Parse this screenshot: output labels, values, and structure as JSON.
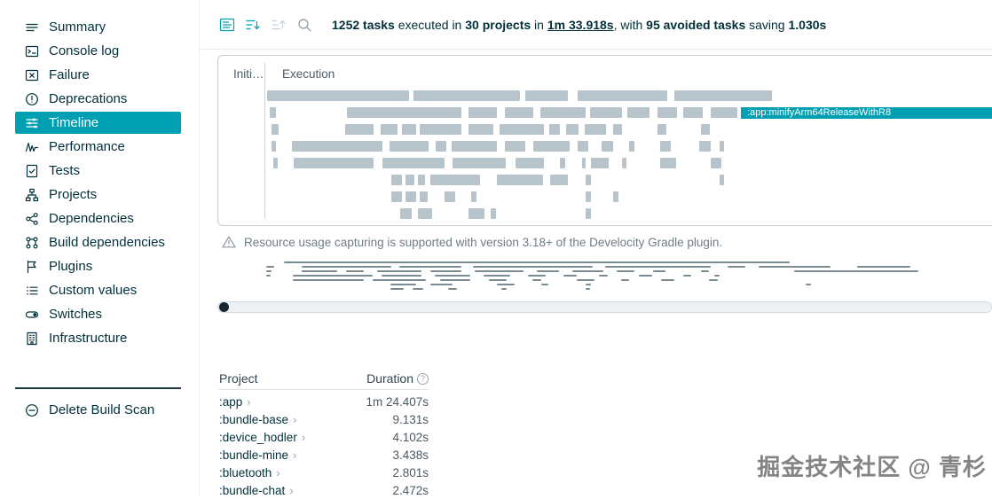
{
  "colors": {
    "accent": "#00a0b2",
    "bar": "#b8c4cb",
    "text": "#02303a",
    "muted": "#6e7d85"
  },
  "sidebar": {
    "items": [
      {
        "label": "Summary",
        "icon": "summary"
      },
      {
        "label": "Console log",
        "icon": "console"
      },
      {
        "label": "Failure",
        "icon": "failure"
      },
      {
        "label": "Deprecations",
        "icon": "deprecations"
      },
      {
        "label": "Timeline",
        "icon": "timeline",
        "active": true
      },
      {
        "label": "Performance",
        "icon": "performance"
      },
      {
        "label": "Tests",
        "icon": "tests"
      },
      {
        "label": "Projects",
        "icon": "projects"
      },
      {
        "label": "Dependencies",
        "icon": "dependencies"
      },
      {
        "label": "Build dependencies",
        "icon": "build-dependencies"
      },
      {
        "label": "Plugins",
        "icon": "plugins"
      },
      {
        "label": "Custom values",
        "icon": "custom-values"
      },
      {
        "label": "Switches",
        "icon": "switches"
      },
      {
        "label": "Infrastructure",
        "icon": "infrastructure"
      }
    ],
    "footer_label": "Delete Build Scan"
  },
  "toolbar": {
    "icons": [
      "view-options",
      "sort-order",
      "group-order",
      "search"
    ]
  },
  "header": {
    "parts": [
      {
        "text": "1252 tasks",
        "bold": true
      },
      {
        "text": " executed in "
      },
      {
        "text": "30 projects",
        "bold": true
      },
      {
        "text": " in "
      },
      {
        "text": "1m 33.918s",
        "bold": true,
        "underline": true
      },
      {
        "text": ", with "
      },
      {
        "text": "95 avoided tasks",
        "bold": true
      },
      {
        "text": " saving "
      },
      {
        "text": "1.030s",
        "bold": true
      }
    ]
  },
  "timeline": {
    "tabs": [
      "Initi…",
      "Execution"
    ],
    "rows": [
      [
        [
          0.4,
          19.5
        ],
        [
          20.5,
          14.6
        ],
        [
          35.9,
          5.8
        ],
        [
          43.0,
          12.4
        ],
        [
          56.4,
          13.4
        ]
      ],
      [
        [
          0.7,
          0.9
        ],
        [
          11.3,
          15.8
        ],
        [
          28.1,
          3.9
        ],
        [
          33.0,
          3.9
        ],
        [
          37.9,
          6.3
        ],
        [
          44.8,
          4.3
        ],
        [
          49.9,
          3.0
        ],
        [
          54.0,
          2.7
        ],
        [
          57.6,
          2.7
        ],
        [
          61.3,
          3.7
        ],
        {
          "x": 65.5,
          "w": 34.5,
          "label": ":app:minifyArm64ReleaseWithR8",
          "highlight": true
        }
      ],
      [
        [
          1.0,
          0.9
        ],
        [
          11.1,
          3.9
        ],
        [
          16.0,
          2.3
        ],
        [
          18.9,
          1.9
        ],
        [
          21.3,
          5.8
        ],
        [
          28.1,
          3.4
        ],
        [
          32.3,
          6.1
        ],
        [
          39.1,
          1.5
        ],
        [
          41.5,
          1.7
        ],
        [
          44.0,
          2.9
        ],
        [
          47.9,
          1.2
        ],
        [
          54.0,
          1.2
        ],
        [
          60.0,
          1.2
        ]
      ],
      [
        [
          1.0,
          0.6
        ],
        [
          3.8,
          12.4
        ],
        [
          17.2,
          5.4
        ],
        [
          23.5,
          1.5
        ],
        [
          25.7,
          6.3
        ],
        [
          33.0,
          2.9
        ],
        [
          36.9,
          5.1
        ],
        [
          43.0,
          1.5
        ],
        [
          46.4,
          1.5
        ],
        [
          50.1,
          0.7
        ],
        [
          54.4,
          1.5
        ],
        [
          59.8,
          1.5
        ],
        [
          62.5,
          0.7
        ]
      ],
      [
        [
          1.2,
          0.6
        ],
        [
          4.0,
          11.0
        ],
        [
          16.2,
          8.5
        ],
        [
          25.9,
          7.3
        ],
        [
          34.5,
          3.9
        ],
        [
          40.6,
          0.7
        ],
        [
          43.6,
          0.6
        ],
        [
          44.9,
          2.4
        ],
        [
          49.1,
          0.7
        ],
        [
          54.4,
          2.2
        ],
        [
          61.3,
          1.5
        ]
      ],
      [
        [
          17.4,
          1.5
        ],
        [
          19.4,
          1.2
        ],
        [
          21.1,
          1.0
        ],
        [
          22.8,
          6.8
        ],
        [
          32.0,
          6.3
        ],
        [
          39.3,
          2.4
        ],
        [
          44.2,
          0.7
        ],
        [
          62.5,
          0.7
        ]
      ],
      [
        [
          17.4,
          1.5
        ],
        [
          19.4,
          1.5
        ],
        [
          21.3,
          1.2
        ],
        [
          24.7,
          1.5
        ],
        [
          28.4,
          0.7
        ],
        [
          44.2,
          0.7
        ],
        [
          47.9,
          0.7
        ]
      ],
      [
        [
          18.6,
          1.7
        ],
        [
          21.1,
          1.9
        ],
        [
          28.1,
          2.2
        ],
        [
          31.1,
          0.7
        ],
        [
          44.2,
          0.7
        ]
      ]
    ]
  },
  "notice": {
    "text": "Resource usage capturing is supported with version 3.18+ of the Develocity Gradle plugin."
  },
  "minimap": {
    "rows": [
      [
        [
          8.6,
          65.3
        ]
      ],
      [
        [
          6.3,
          1.0
        ],
        [
          10.9,
          11.5
        ],
        [
          23.5,
          8.0
        ],
        [
          33.0,
          15.5
        ],
        [
          50.0,
          13.7
        ],
        [
          65.9,
          2.3
        ],
        [
          69.9,
          9.2
        ],
        [
          82.6,
          6.9
        ]
      ],
      [
        [
          6.3,
          0.7
        ],
        [
          10.9,
          4.6
        ],
        [
          16.6,
          2.3
        ],
        [
          20.6,
          5.7
        ],
        [
          27.5,
          4.0
        ],
        [
          33.2,
          6.3
        ],
        [
          41.2,
          2.9
        ],
        [
          45.8,
          4.0
        ],
        [
          51.5,
          2.3
        ],
        [
          56.2,
          1.7
        ],
        [
          62.4,
          1.1
        ],
        [
          74.5,
          16.0
        ]
      ],
      [
        [
          6.3,
          0.6
        ],
        [
          9.7,
          10.3
        ],
        [
          21.2,
          5.2
        ],
        [
          28.1,
          4.6
        ],
        [
          34.4,
          3.4
        ],
        [
          40.1,
          2.3
        ],
        [
          44.7,
          1.7
        ],
        [
          49.3,
          1.1
        ],
        [
          54.4,
          1.7
        ],
        [
          60.1,
          1.1
        ],
        [
          64.1,
          0.7
        ]
      ],
      [
        [
          9.7,
          9.2
        ],
        [
          20.0,
          6.9
        ],
        [
          28.7,
          4.0
        ],
        [
          35.0,
          2.3
        ],
        [
          40.7,
          1.1
        ],
        [
          46.4,
          2.3
        ],
        [
          52.1,
          1.1
        ],
        [
          57.3,
          1.7
        ],
        [
          63.5,
          1.1
        ]
      ],
      [
        [
          22.3,
          3.4
        ],
        [
          27.5,
          2.9
        ],
        [
          36.1,
          2.3
        ],
        [
          41.8,
          0.9
        ],
        [
          47.5,
          0.7
        ],
        [
          75.9,
          0.7
        ]
      ],
      [
        [
          22.3,
          1.7
        ],
        [
          25.2,
          1.4
        ],
        [
          29.8,
          1.1
        ],
        [
          36.7,
          0.6
        ],
        [
          47.5,
          0.6
        ]
      ]
    ]
  },
  "table": {
    "columns": [
      "Project",
      "Duration"
    ],
    "rows": [
      {
        "project": ":app",
        "duration": "1m 24.407s"
      },
      {
        "project": ":bundle-base",
        "duration": "9.131s"
      },
      {
        "project": ":device_hodler",
        "duration": "4.102s"
      },
      {
        "project": ":bundle-mine",
        "duration": "3.438s"
      },
      {
        "project": ":bluetooth",
        "duration": "2.801s"
      },
      {
        "project": ":bundle-chat",
        "duration": "2.472s"
      }
    ]
  },
  "watermark": {
    "text": "掘金技术社区 @ 青杉"
  }
}
